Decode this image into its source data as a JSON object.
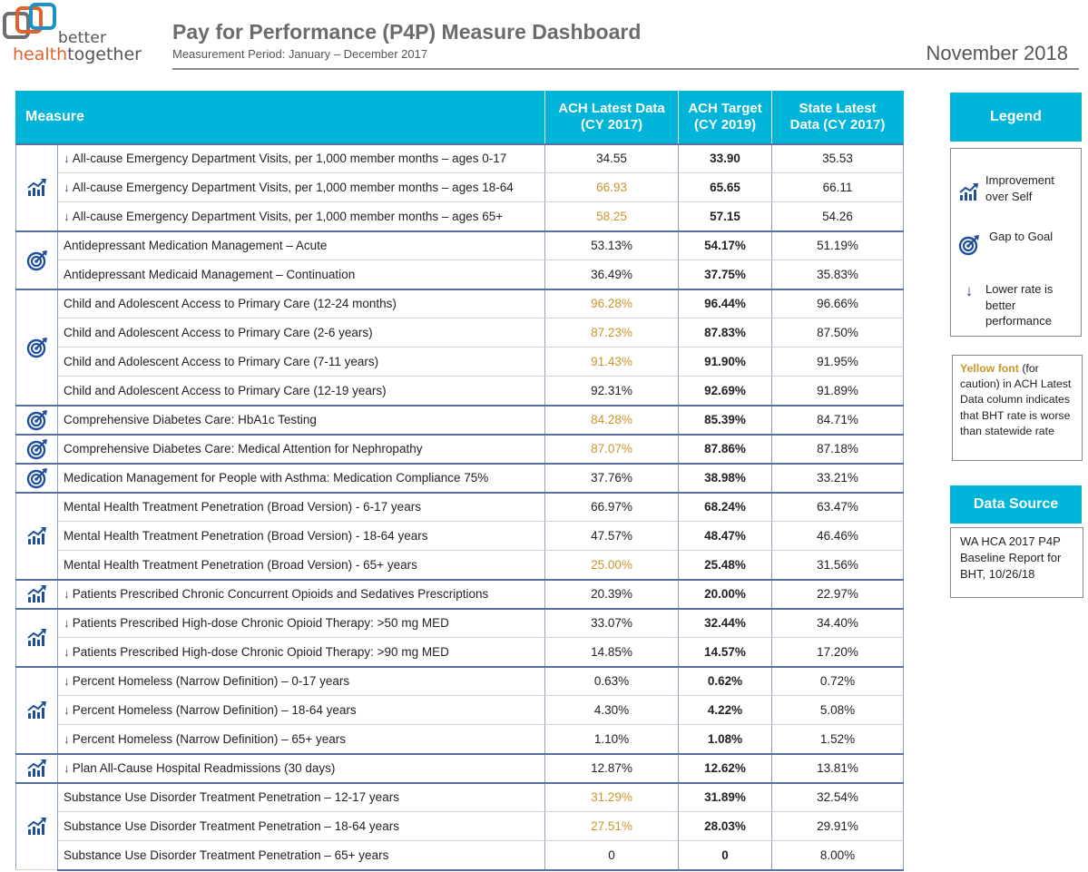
{
  "brand": {
    "word1": "better",
    "word2a": "health",
    "word2b": "together"
  },
  "header": {
    "title": "Pay for Performance (P4P) Measure Dashboard",
    "period": "Measurement Period: January – December 2017",
    "date": "November 2018"
  },
  "colors": {
    "accent": "#00b5d9",
    "caution": "#c8962a",
    "icon": "#1f4e9c",
    "logo_orange": "#e1632a"
  },
  "table": {
    "headers": {
      "measure": "Measure",
      "ach_latest_1": "ACH Latest Data",
      "ach_latest_2": "(CY 2017)",
      "ach_target_1": "ACH Target",
      "ach_target_2": "(CY 2019)",
      "state_latest_1": "State Latest",
      "state_latest_2": "Data (CY 2017)"
    },
    "rows": [
      {
        "icon": "improvement-icon",
        "arrow": "↓",
        "measure": "All-cause Emergency Department Visits, per 1,000 member months – ages 0-17",
        "latest": "34.55",
        "target": "33.90",
        "state": "35.53",
        "caution": false
      },
      {
        "icon": "",
        "arrow": "↓",
        "measure": "All-cause Emergency Department Visits, per 1,000 member months – ages 18-64",
        "latest": "66.93",
        "target": "65.65",
        "state": "66.11",
        "caution": true
      },
      {
        "icon": "",
        "arrow": "↓",
        "measure": "All-cause Emergency Department Visits, per 1,000 member months – ages 65+",
        "latest": "58.25",
        "target": "57.15",
        "state": "54.26",
        "caution": true
      },
      {
        "icon": "gap-to-goal-icon",
        "arrow": "",
        "measure": "Antidepressant Medication Management – Acute",
        "latest": "53.13%",
        "target": "54.17%",
        "state": "51.19%",
        "caution": false
      },
      {
        "icon": "",
        "arrow": "",
        "measure": "Antidepressant Medicaid Management – Continuation",
        "latest": "36.49%",
        "target": "37.75%",
        "state": "35.83%",
        "caution": false
      },
      {
        "icon": "gap-to-goal-icon",
        "arrow": "",
        "measure": "Child and Adolescent Access to Primary Care (12-24 months)",
        "latest": "96.28%",
        "target": "96.44%",
        "state": "96.66%",
        "caution": true
      },
      {
        "icon": "",
        "arrow": "",
        "measure": "Child and Adolescent Access to Primary Care (2-6 years)",
        "latest": "87.23%",
        "target": "87.83%",
        "state": "87.50%",
        "caution": true
      },
      {
        "icon": "",
        "arrow": "",
        "measure": "Child and Adolescent Access to Primary Care (7-11 years)",
        "latest": "91.43%",
        "target": "91.90%",
        "state": "91.95%",
        "caution": true
      },
      {
        "icon": "",
        "arrow": "",
        "measure": "Child and Adolescent Access to Primary Care (12-19 years)",
        "latest": "92.31%",
        "target": "92.69%",
        "state": "91.89%",
        "caution": false
      },
      {
        "icon": "gap-to-goal-icon",
        "arrow": "",
        "measure": "Comprehensive Diabetes Care: HbA1c Testing",
        "latest": "84.28%",
        "target": "85.39%",
        "state": "84.71%",
        "caution": true
      },
      {
        "icon": "gap-to-goal-icon",
        "arrow": "",
        "measure": "Comprehensive Diabetes Care: Medical Attention for Nephropathy",
        "latest": "87.07%",
        "target": "87.86%",
        "state": "87.18%",
        "caution": true
      },
      {
        "icon": "gap-to-goal-icon",
        "arrow": "",
        "measure": "Medication Management for People with Asthma: Medication Compliance 75%",
        "latest": "37.76%",
        "target": "38.98%",
        "state": "33.21%",
        "caution": false
      },
      {
        "icon": "improvement-icon",
        "arrow": "",
        "measure": "Mental Health Treatment Penetration (Broad Version) - 6-17 years",
        "latest": "66.97%",
        "target": "68.24%",
        "state": "63.47%",
        "caution": false
      },
      {
        "icon": "",
        "arrow": "",
        "measure": "Mental Health Treatment Penetration (Broad Version) - 18-64 years",
        "latest": "47.57%",
        "target": "48.47%",
        "state": "46.46%",
        "caution": false
      },
      {
        "icon": "",
        "arrow": "",
        "measure": "Mental Health Treatment Penetration (Broad Version) - 65+ years",
        "latest": "25.00%",
        "target": "25.48%",
        "state": "31.56%",
        "caution": true
      },
      {
        "icon": "improvement-icon",
        "arrow": "↓",
        "measure": "Patients Prescribed Chronic Concurrent Opioids and Sedatives Prescriptions",
        "latest": "20.39%",
        "target": "20.00%",
        "state": "22.97%",
        "caution": false
      },
      {
        "icon": "improvement-icon",
        "arrow": "↓",
        "measure": "Patients Prescribed High-dose Chronic Opioid Therapy: >50 mg MED",
        "latest": "33.07%",
        "target": "32.44%",
        "state": "34.40%",
        "caution": false
      },
      {
        "icon": "",
        "arrow": "↓",
        "measure": "Patients Prescribed High-dose Chronic Opioid Therapy: >90 mg MED",
        "latest": "14.85%",
        "target": "14.57%",
        "state": "17.20%",
        "caution": false
      },
      {
        "icon": "improvement-icon",
        "arrow": "↓",
        "measure": "Percent Homeless (Narrow Definition) – 0-17 years",
        "latest": "0.63%",
        "target": "0.62%",
        "state": "0.72%",
        "caution": false
      },
      {
        "icon": "",
        "arrow": "↓",
        "measure": "Percent Homeless (Narrow Definition) – 18-64 years",
        "latest": "4.30%",
        "target": "4.22%",
        "state": "5.08%",
        "caution": false
      },
      {
        "icon": "",
        "arrow": "↓",
        "measure": "Percent Homeless (Narrow Definition) – 65+ years",
        "latest": "1.10%",
        "target": "1.08%",
        "state": "1.52%",
        "caution": false
      },
      {
        "icon": "improvement-icon",
        "arrow": "↓",
        "measure": "Plan All-Cause Hospital Readmissions (30 days)",
        "latest": "12.87%",
        "target": "12.62%",
        "state": "13.81%",
        "caution": false
      },
      {
        "icon": "improvement-icon",
        "arrow": "",
        "measure": "Substance Use Disorder Treatment Penetration – 12-17 years",
        "latest": "31.29%",
        "target": "31.89%",
        "state": "32.54%",
        "caution": true
      },
      {
        "icon": "",
        "arrow": "",
        "measure": "Substance Use Disorder Treatment Penetration – 18-64 years",
        "latest": "27.51%",
        "target": "28.03%",
        "state": "29.91%",
        "caution": true
      },
      {
        "icon": "",
        "arrow": "",
        "measure": "Substance Use Disorder Treatment Penetration – 65+ years",
        "latest": "0",
        "target": "0",
        "state": "8.00%",
        "caution": false
      }
    ],
    "groups": [
      [
        0,
        3
      ],
      [
        3,
        2
      ],
      [
        5,
        4
      ],
      [
        9,
        1
      ],
      [
        10,
        1
      ],
      [
        11,
        1
      ],
      [
        12,
        3
      ],
      [
        15,
        1
      ],
      [
        16,
        2
      ],
      [
        18,
        3
      ],
      [
        21,
        1
      ],
      [
        22,
        3
      ]
    ]
  },
  "legend": {
    "title": "Legend",
    "improvement": "Improvement over Self",
    "gap": "Gap to Goal",
    "lower_arrow": "↓",
    "lower": "Lower rate is better performance",
    "caution_label": "Yellow font",
    "caution_text": " (for caution) in ACH Latest Data column indicates that BHT rate is worse than statewide rate"
  },
  "source": {
    "title": "Data Source",
    "text": "WA HCA 2017 P4P Baseline Report for BHT, 10/26/18"
  }
}
